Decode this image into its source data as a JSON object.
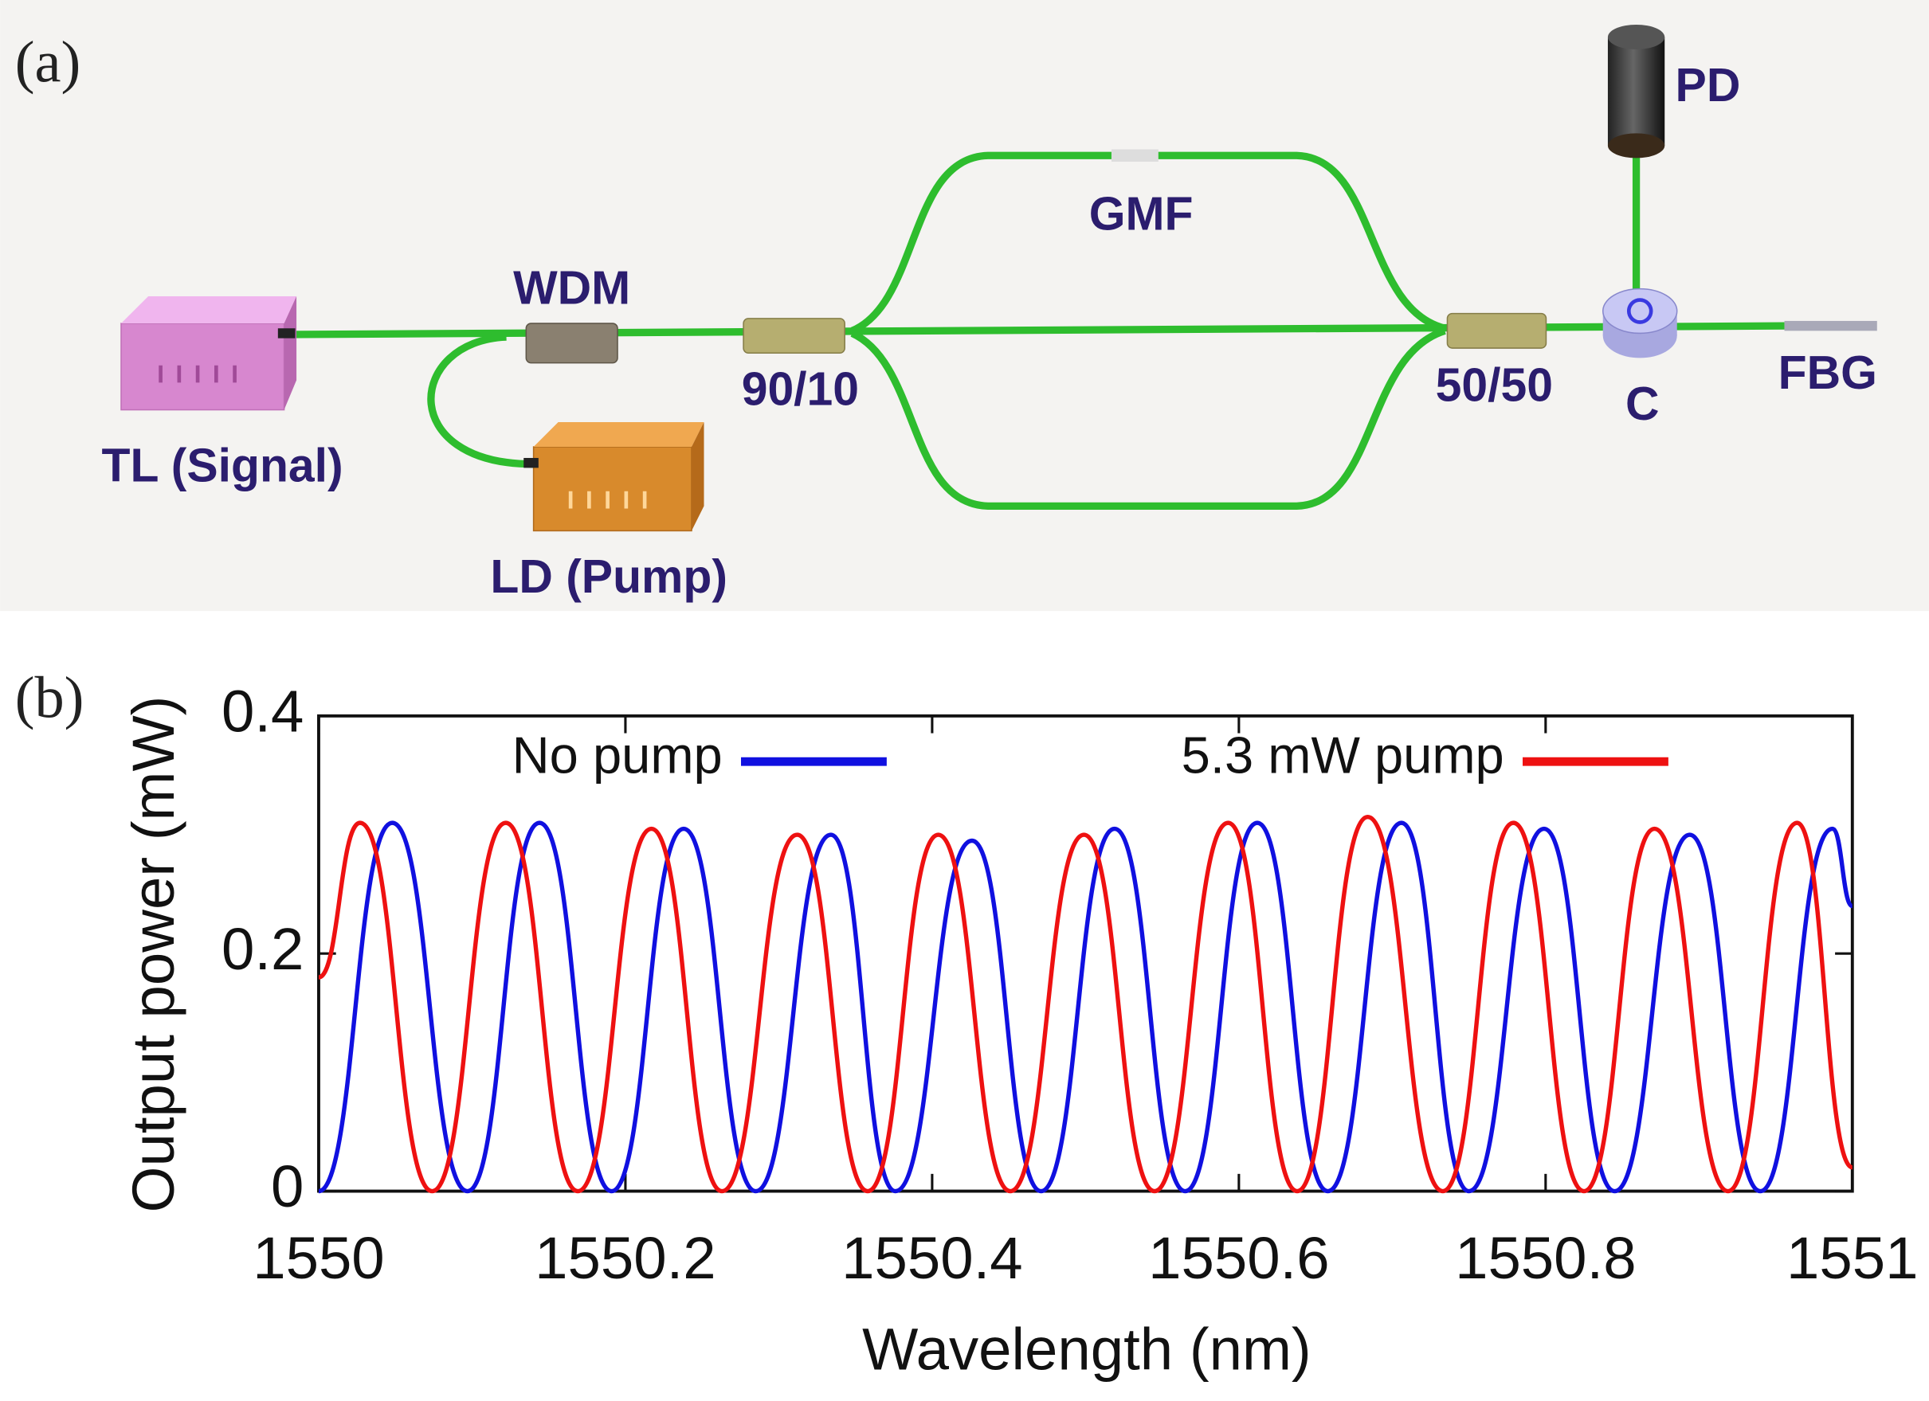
{
  "panel_labels": [
    "(a)",
    "(b)"
  ],
  "diagram": {
    "labels": [
      "TL (Signal)",
      "LD (Pump)",
      "WDM",
      "90/10",
      "GMF",
      "50/50",
      "C",
      "PD",
      "FBG"
    ]
  },
  "chart_data": {
    "type": "line",
    "xlabel": "Wavelength (nm)",
    "ylabel": "Output power (mW)",
    "xlim": [
      1550,
      1551
    ],
    "xticks": [
      1550,
      1550.2,
      1550.4,
      1550.6,
      1550.8,
      1551
    ],
    "ylim": [
      0,
      0.4
    ],
    "yticks": [
      0,
      0.2,
      0.4
    ],
    "series": [
      {
        "name": "No pump",
        "color": "#1010e0",
        "x": [
          1550,
          1550.048,
          1550.097,
          1550.144,
          1550.191,
          1550.238,
          1550.285,
          1550.334,
          1550.376,
          1550.426,
          1550.471,
          1550.519,
          1550.565,
          1550.612,
          1550.658,
          1550.706,
          1550.75,
          1550.799,
          1550.845,
          1550.894,
          1550.94,
          1550.987,
          1551
        ],
        "values": [
          0,
          0.31,
          0,
          0.31,
          0,
          0.305,
          0,
          0.3,
          0,
          0.295,
          0,
          0.305,
          0,
          0.31,
          0,
          0.31,
          0,
          0.305,
          0,
          0.3,
          0,
          0.305,
          0.24
        ]
      },
      {
        "name": "5.3 mW pump",
        "color": "#ee1111",
        "x": [
          1550,
          1550.027,
          1550.074,
          1550.122,
          1550.169,
          1550.217,
          1550.263,
          1550.312,
          1550.358,
          1550.404,
          1550.451,
          1550.499,
          1550.545,
          1550.593,
          1550.638,
          1550.684,
          1550.733,
          1550.779,
          1550.825,
          1550.871,
          1550.919,
          1550.964,
          1551
        ],
        "values": [
          0.18,
          0.31,
          0,
          0.31,
          0,
          0.305,
          0,
          0.3,
          0,
          0.3,
          0,
          0.3,
          0,
          0.31,
          0,
          0.315,
          0,
          0.31,
          0,
          0.305,
          0,
          0.31,
          0.02
        ]
      }
    ]
  }
}
